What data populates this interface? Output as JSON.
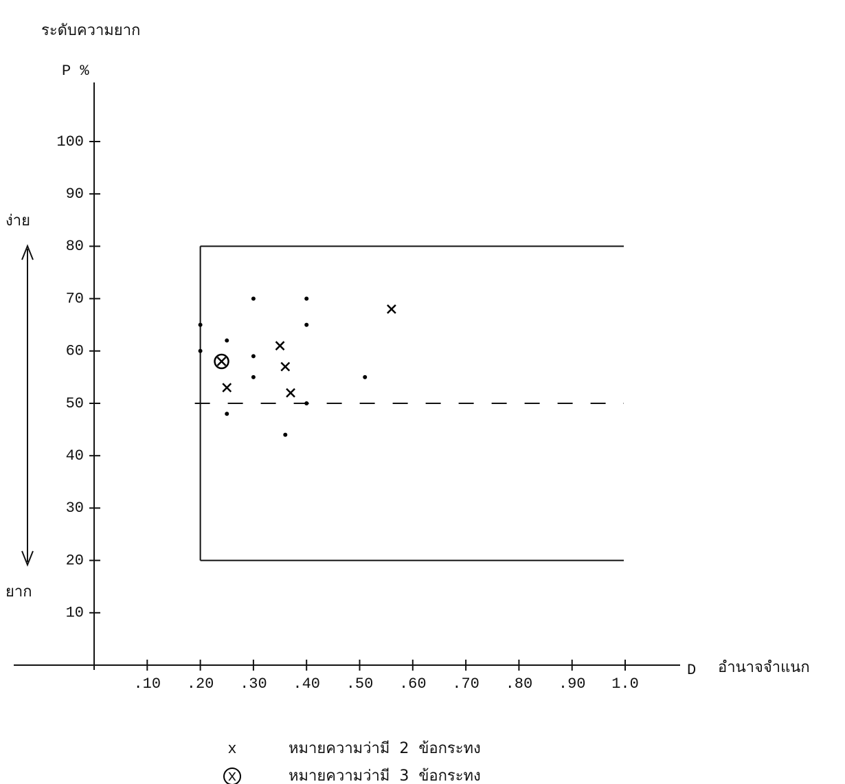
{
  "chart_data": {
    "type": "scatter",
    "title": "ระดับความยาก",
    "y_label": "P %",
    "x_label_symbol": "D",
    "x_label": "อำนาจจำแนก",
    "side_top": "ง่าย",
    "side_bottom": "ยาก",
    "xlim": [
      0,
      1.0
    ],
    "ylim": [
      0,
      100
    ],
    "xticks": [
      {
        "value": 0.1,
        "label": ".10"
      },
      {
        "value": 0.2,
        "label": ".20"
      },
      {
        "value": 0.3,
        "label": ".30"
      },
      {
        "value": 0.4,
        "label": ".40"
      },
      {
        "value": 0.5,
        "label": ".50"
      },
      {
        "value": 0.6,
        "label": ".60"
      },
      {
        "value": 0.7,
        "label": ".70"
      },
      {
        "value": 0.8,
        "label": ".80"
      },
      {
        "value": 0.9,
        "label": ".90"
      },
      {
        "value": 1.0,
        "label": "1.0"
      }
    ],
    "yticks": [
      10,
      20,
      30,
      40,
      50,
      60,
      70,
      80,
      90,
      100
    ],
    "region": {
      "x": [
        0.2,
        1.0
      ],
      "y": [
        20,
        80
      ]
    },
    "dashed_line": 50,
    "series": [
      {
        "marker": "dot",
        "color": "#000000",
        "x": [
          0.2,
          0.2,
          0.25,
          0.25,
          0.3,
          0.3,
          0.3,
          0.4,
          0.4,
          0.4,
          0.36,
          0.51
        ],
        "values": [
          65,
          60,
          62,
          48,
          70,
          59,
          55,
          70,
          65,
          50,
          44,
          55
        ]
      },
      {
        "name": "หมายความว่ามี  2  ข้อกระทง",
        "marker": "x",
        "color": "#000000",
        "x": [
          0.25,
          0.35,
          0.36,
          0.37,
          0.56
        ],
        "values": [
          53,
          61,
          57,
          52,
          68
        ]
      },
      {
        "name": "หมายความว่ามี  3  ข้อกระทง",
        "marker": "x",
        "circled": true,
        "color": "#000000",
        "x": [
          0.24
        ],
        "values": [
          58
        ]
      }
    ]
  }
}
